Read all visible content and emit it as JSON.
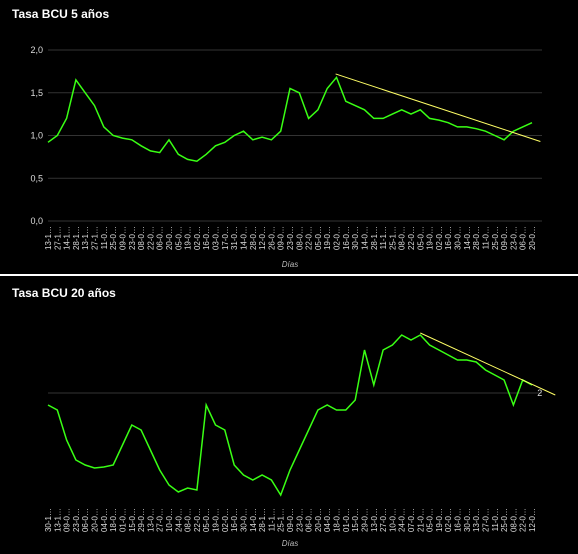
{
  "chart_data": [
    {
      "type": "line",
      "title": "Tasa BCU 5 años",
      "x_label": "Días",
      "color": "#39ff14",
      "grid": true,
      "categories": [
        "13-1…",
        "27-1…",
        "14-1…",
        "28-1…",
        "13-1…",
        "27-1…",
        "11-0…",
        "25-0…",
        "09-0…",
        "23-0…",
        "08-0…",
        "22-0…",
        "06-0…",
        "20-0…",
        "05-0…",
        "19-0…",
        "02-0…",
        "16-0…",
        "03-0…",
        "17-0…",
        "31-0…",
        "14-0…",
        "28-0…",
        "12-0…",
        "26-0…",
        "09-0…",
        "23-0…",
        "08-0…",
        "22-0…",
        "05-0…",
        "19-0…",
        "02-0…",
        "16-0…",
        "30-0…",
        "14-0…",
        "28-1…",
        "11-1…",
        "25-1…",
        "08-0…",
        "22-0…",
        "05-0…",
        "19-0…",
        "02-0…",
        "16-0…",
        "30-0…",
        "14-0…",
        "28-0…",
        "11-0…",
        "25-0…",
        "09-0…",
        "23-0…",
        "06-0…",
        "20-0…"
      ],
      "values": [
        0.92,
        1.0,
        1.2,
        1.65,
        1.5,
        1.35,
        1.1,
        1.0,
        0.97,
        0.95,
        0.88,
        0.82,
        0.8,
        0.95,
        0.78,
        0.72,
        0.7,
        0.78,
        0.88,
        0.92,
        1.0,
        1.05,
        0.95,
        0.98,
        0.95,
        1.05,
        1.55,
        1.5,
        1.2,
        1.3,
        1.55,
        1.68,
        1.4,
        1.35,
        1.3,
        1.2,
        1.2,
        1.25,
        1.3,
        1.25,
        1.3,
        1.2,
        1.18,
        1.15,
        1.1,
        1.1,
        1.08,
        1.05,
        1.0,
        0.95,
        1.05,
        1.1,
        1.15
      ],
      "ylim": [
        0,
        2
      ],
      "yticks": [
        {
          "value": 0,
          "label": "0,0"
        },
        {
          "value": 0.5,
          "label": "0,5"
        },
        {
          "value": 1,
          "label": "1,0"
        },
        {
          "value": 1.5,
          "label": "1,5"
        },
        {
          "value": 2,
          "label": "2,0"
        }
      ],
      "trendline": {
        "x": [
          30.9,
          52.9
        ],
        "y": [
          1.72,
          0.93
        ],
        "color": "#ffff66"
      }
    },
    {
      "type": "line",
      "title": "Tasa BCU 20 años",
      "x_label": "Días",
      "color": "#39ff14",
      "grid": true,
      "categories": [
        "30-1…",
        "13-1…",
        "09-0…",
        "23-0…",
        "06-0…",
        "20-0…",
        "04-0…",
        "18-0…",
        "01-0…",
        "15-0…",
        "29-0…",
        "13-0…",
        "27-0…",
        "10-0…",
        "24-0…",
        "08-0…",
        "22-0…",
        "05-0…",
        "19-0…",
        "02-0…",
        "16-0…",
        "30-0…",
        "14-0…",
        "28-1…",
        "11-1…",
        "25-1…",
        "09-0…",
        "23-0…",
        "06-0…",
        "20-0…",
        "04-0…",
        "18-0…",
        "01-0…",
        "15-0…",
        "29-0…",
        "13-0…",
        "27-0…",
        "10-0…",
        "24-0…",
        "07-0…",
        "21-0…",
        "05-0…",
        "19-0…",
        "02-0…",
        "16-0…",
        "30-0…",
        "13-0…",
        "27-0…",
        "11-0…",
        "25-0…",
        "08-0…",
        "22-0…",
        "12-0…"
      ],
      "values": [
        1.88,
        1.83,
        1.53,
        1.33,
        1.28,
        1.25,
        1.26,
        1.28,
        1.48,
        1.68,
        1.63,
        1.43,
        1.23,
        1.08,
        1.01,
        1.05,
        1.03,
        1.88,
        1.68,
        1.63,
        1.28,
        1.18,
        1.13,
        1.18,
        1.13,
        0.98,
        1.23,
        1.43,
        1.63,
        1.83,
        1.88,
        1.83,
        1.83,
        1.93,
        2.43,
        2.08,
        2.43,
        2.48,
        2.58,
        2.53,
        2.58,
        2.48,
        2.43,
        2.38,
        2.33,
        2.33,
        2.31,
        2.23,
        2.18,
        2.13,
        1.88,
        2.13,
        2.08
      ],
      "ylim": [
        0.9,
        3.0
      ],
      "grid_values": [
        2
      ],
      "trendline": {
        "x": [
          40,
          54.5
        ],
        "y": [
          2.6,
          1.98
        ],
        "color": "#ffff66",
        "label": "2"
      }
    }
  ]
}
